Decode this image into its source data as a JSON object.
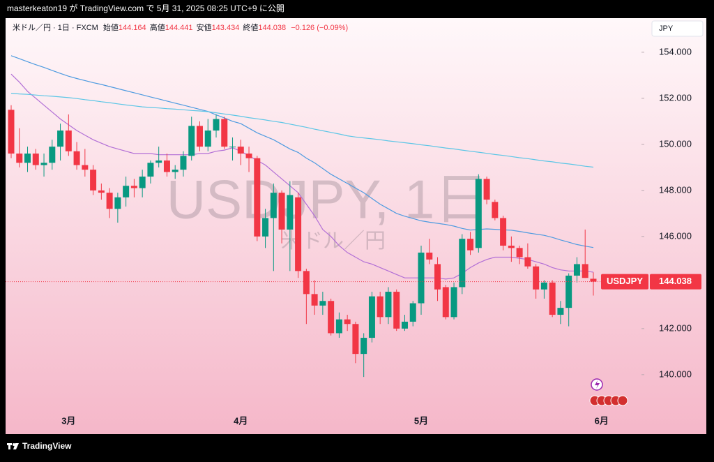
{
  "header": "masterkeaton19 が TradingView.com で 5月 31, 2025 08:25 UTC+9 に公開",
  "footer": "TradingView",
  "chart_data": {
    "type": "candlestick",
    "symbol": "米ドル／円 · 1日 · FXCM",
    "open_label": "始値",
    "high_label": "高値",
    "low_label": "安値",
    "close_label": "終値",
    "change": "−0.126 (−0.09%)",
    "currency": "JPY",
    "watermark": "USDJPY, 1日",
    "watermark_sub": "米ドル／円",
    "price_tag": "USDJPY",
    "up_color": "#089981",
    "down_color": "#f23645",
    "ylim": [
      138.45,
      155.48
    ],
    "yticks": [
      {
        "value": 140,
        "label": "140.000"
      },
      {
        "value": 142,
        "label": "142.000"
      },
      {
        "value": 144,
        "label": "144.000"
      },
      {
        "value": 146,
        "label": "146.000"
      },
      {
        "value": 148,
        "label": "148.000"
      },
      {
        "value": 150,
        "label": "150.000"
      },
      {
        "value": 152,
        "label": "152.000"
      },
      {
        "value": 154,
        "label": "154.000"
      }
    ],
    "categories": [
      null,
      null,
      null,
      null,
      null,
      null,
      null,
      "3月",
      null,
      null,
      null,
      null,
      null,
      null,
      null,
      null,
      null,
      null,
      null,
      null,
      null,
      null,
      null,
      null,
      null,
      null,
      null,
      null,
      "4月",
      null,
      null,
      null,
      null,
      null,
      null,
      null,
      null,
      null,
      null,
      null,
      null,
      null,
      null,
      null,
      null,
      null,
      null,
      null,
      null,
      null,
      "5月",
      null,
      null,
      null,
      null,
      null,
      null,
      null,
      null,
      null,
      null,
      null,
      null,
      null,
      null,
      null,
      null,
      null,
      null,
      null,
      null,
      null,
      "6月"
    ],
    "open": [
      151.5,
      149.6,
      149.2,
      149.6,
      149.1,
      149.2,
      149.9,
      150.6,
      149.7,
      149.1,
      148.9,
      148.0,
      147.9,
      147.2,
      147.7,
      148.2,
      148.1,
      148.6,
      149.2,
      149.3,
      148.8,
      148.9,
      149.5,
      150.8,
      149.9,
      150.6,
      151.1,
      149.9,
      149.9,
      149.6,
      149.4,
      146.0,
      146.8,
      147.9,
      146.3,
      147.7,
      144.5,
      143.5,
      143.0,
      143.2,
      141.8,
      142.4,
      142.2,
      140.9,
      141.6,
      143.4,
      142.5,
      143.6,
      142.0,
      142.3,
      143.1,
      145.3,
      144.8,
      143.8,
      142.5,
      143.8,
      145.9,
      145.5,
      148.5,
      147.5,
      146.8,
      145.6,
      145.5,
      145.1,
      144.7,
      143.7,
      144.0,
      142.6,
      142.9,
      144.3,
      144.8,
      144.164,
      null
    ],
    "high": [
      151.7,
      150.7,
      149.9,
      149.8,
      149.6,
      150.2,
      150.9,
      151.3,
      150.1,
      149.8,
      149.1,
      148.3,
      148.1,
      147.9,
      148.6,
      148.5,
      148.9,
      149.3,
      149.9,
      149.6,
      149.1,
      149.7,
      151.2,
      151.0,
      151.1,
      151.3,
      151.2,
      150.3,
      150.2,
      149.9,
      149.5,
      147.2,
      148.3,
      148.0,
      148.4,
      147.9,
      144.6,
      144.1,
      143.6,
      143.3,
      142.7,
      142.6,
      142.3,
      141.8,
      143.6,
      143.6,
      143.8,
      143.7,
      142.6,
      143.2,
      145.6,
      145.9,
      145.1,
      143.9,
      144.0,
      146.1,
      146.2,
      148.7,
      148.6,
      147.6,
      146.9,
      146.0,
      145.6,
      145.7,
      144.8,
      144.1,
      144.1,
      143.2,
      144.4,
      145.1,
      146.3,
      144.441,
      null
    ],
    "low": [
      149.4,
      149.0,
      148.8,
      148.9,
      148.6,
      148.9,
      149.3,
      149.5,
      148.9,
      148.6,
      147.8,
      147.6,
      146.8,
      146.6,
      147.3,
      147.7,
      147.7,
      148.3,
      149.0,
      148.6,
      148.5,
      148.6,
      149.3,
      149.7,
      149.7,
      150.3,
      149.8,
      149.3,
      149.1,
      148.8,
      145.8,
      145.5,
      144.5,
      145.7,
      144.5,
      144.2,
      142.2,
      142.6,
      142.6,
      141.7,
      141.6,
      141.9,
      140.5,
      139.9,
      141.4,
      142.2,
      142.2,
      141.9,
      141.9,
      142.1,
      142.6,
      144.8,
      143.2,
      142.4,
      142.4,
      143.5,
      145.2,
      145.3,
      147.4,
      146.7,
      145.4,
      144.9,
      144.8,
      144.6,
      143.3,
      143.3,
      142.5,
      142.2,
      142.1,
      144.0,
      144.2,
      143.434,
      null
    ],
    "close": [
      149.6,
      149.2,
      149.6,
      149.1,
      149.2,
      149.9,
      150.6,
      149.7,
      149.1,
      148.9,
      148.0,
      147.9,
      147.2,
      147.7,
      148.2,
      148.1,
      148.6,
      149.2,
      149.3,
      148.8,
      148.9,
      149.5,
      150.8,
      149.9,
      150.6,
      151.1,
      149.9,
      149.9,
      149.6,
      149.4,
      146.0,
      146.8,
      147.9,
      146.3,
      147.8,
      144.5,
      143.5,
      143.0,
      143.2,
      141.8,
      142.4,
      142.2,
      140.9,
      141.6,
      143.4,
      142.5,
      143.6,
      142.0,
      142.3,
      143.1,
      145.3,
      145.0,
      143.7,
      142.5,
      143.8,
      145.9,
      145.4,
      148.5,
      147.6,
      146.8,
      145.6,
      145.5,
      145.1,
      144.7,
      143.7,
      144.0,
      142.6,
      142.9,
      144.3,
      144.8,
      144.2,
      144.038,
      null
    ],
    "lines": [
      {
        "color": "#b26fd6",
        "values": [
          153.05,
          152.7,
          152.3,
          152.0,
          151.7,
          151.4,
          151.1,
          150.85,
          150.6,
          150.4,
          150.2,
          150.05,
          149.9,
          149.8,
          149.7,
          149.6,
          149.6,
          149.6,
          149.55,
          149.55,
          149.55,
          149.55,
          149.55,
          149.6,
          149.6,
          149.7,
          149.75,
          149.85,
          149.7,
          149.5,
          149.3,
          149.1,
          148.8,
          148.5,
          148.2,
          147.9,
          147.4,
          146.9,
          146.3,
          146.0,
          145.6,
          145.3,
          145.1,
          144.9,
          144.8,
          144.65,
          144.5,
          144.35,
          144.2,
          144.2,
          144.2,
          144.2,
          144.2,
          144.15,
          144.2,
          144.4,
          144.65,
          144.85,
          145.0,
          145.1,
          145.1,
          145.1,
          145.05,
          145.0,
          144.9,
          144.8,
          144.65,
          144.55,
          144.5,
          144.5,
          144.5,
          144.45,
          null
        ]
      },
      {
        "color": "#4e9be0",
        "values": [
          153.85,
          153.72,
          153.59,
          153.46,
          153.34,
          153.21,
          153.08,
          152.96,
          152.86,
          152.77,
          152.68,
          152.6,
          152.51,
          152.42,
          152.33,
          152.24,
          152.15,
          152.06,
          151.97,
          151.88,
          151.79,
          151.7,
          151.61,
          151.52,
          151.43,
          151.28,
          151.15,
          151.0,
          150.9,
          150.7,
          150.5,
          150.35,
          150.2,
          150.0,
          149.8,
          149.65,
          149.4,
          149.2,
          148.95,
          148.7,
          148.5,
          148.3,
          148.1,
          147.9,
          147.65,
          147.4,
          147.2,
          147.0,
          146.88,
          146.78,
          146.68,
          146.62,
          146.57,
          146.52,
          146.45,
          146.35,
          146.28,
          146.3,
          146.33,
          146.31,
          146.29,
          146.27,
          146.22,
          146.16,
          146.1,
          146.05,
          145.96,
          145.85,
          145.75,
          145.65,
          145.58,
          145.52,
          null
        ]
      },
      {
        "color": "#5cc6e6",
        "values": [
          152.22,
          152.19,
          152.17,
          152.14,
          152.11,
          152.09,
          152.06,
          152.03,
          151.99,
          151.94,
          151.9,
          151.85,
          151.81,
          151.76,
          151.71,
          151.67,
          151.63,
          151.6,
          151.58,
          151.55,
          151.53,
          151.5,
          151.47,
          151.45,
          151.42,
          151.37,
          151.32,
          151.27,
          151.22,
          151.16,
          151.11,
          151.06,
          151.0,
          150.95,
          150.88,
          150.81,
          150.74,
          150.66,
          150.59,
          150.52,
          150.45,
          150.37,
          150.32,
          150.28,
          150.24,
          150.2,
          150.15,
          150.11,
          150.07,
          150.03,
          149.98,
          149.94,
          149.89,
          149.84,
          149.8,
          149.75,
          149.7,
          149.66,
          149.61,
          149.56,
          149.52,
          149.47,
          149.42,
          149.38,
          149.33,
          149.28,
          149.24,
          149.19,
          149.15,
          149.1,
          149.05,
          149.01,
          null
        ]
      }
    ]
  }
}
